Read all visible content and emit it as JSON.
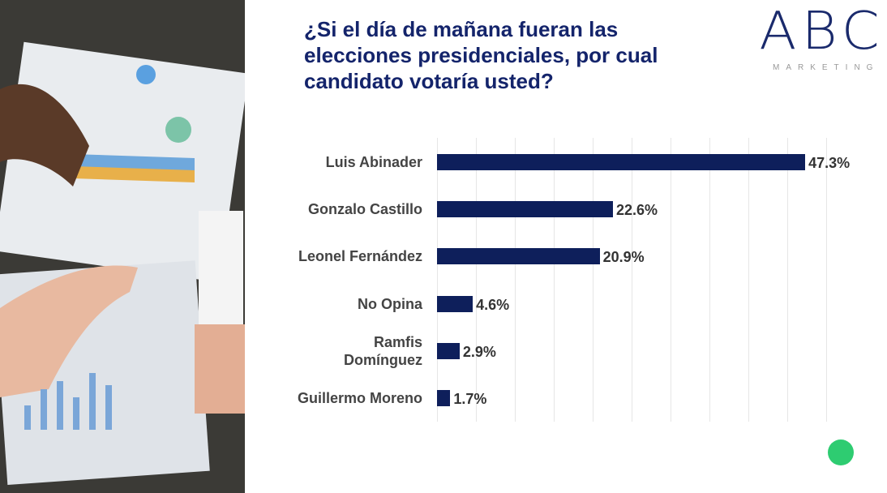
{
  "chart_data": {
    "type": "barh",
    "title": "¿Si el día de mañana fueran las elecciones presidenciales, por cual candidato votaría usted?",
    "logo": {
      "mark": "ABC",
      "text": "MARKETING"
    },
    "categories": [
      "Luis Abinader",
      "Gonzalo Castillo",
      "Leonel Fernández",
      "No Opina",
      "Ramfis Domínguez",
      "Guillermo Moreno"
    ],
    "values": [
      47.3,
      22.6,
      20.9,
      4.6,
      2.9,
      1.7
    ],
    "value_labels": [
      "47.3%",
      "22.6%",
      "20.9%",
      "4.6%",
      "2.9%",
      "1.7%"
    ],
    "color": "#0e1f5b",
    "xlim": [
      0,
      50
    ],
    "xticks": [
      0,
      5,
      10,
      15,
      20,
      25,
      30,
      35,
      40,
      45,
      50
    ],
    "grid": true
  }
}
